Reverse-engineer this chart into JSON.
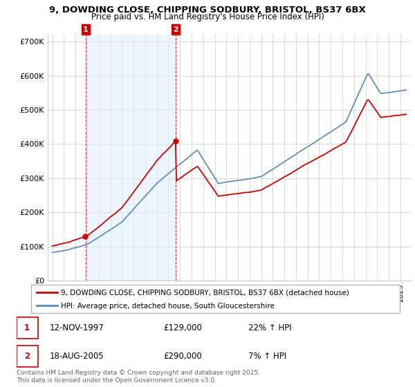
{
  "title": "9, DOWDING CLOSE, CHIPPING SODBURY, BRISTOL, BS37 6BX",
  "subtitle": "Price paid vs. HM Land Registry's House Price Index (HPI)",
  "legend_line1": "9, DOWDING CLOSE, CHIPPING SODBURY, BRISTOL, BS37 6BX (detached house)",
  "legend_line2": "HPI: Average price, detached house, South Gloucestershire",
  "footer": "Contains HM Land Registry data © Crown copyright and database right 2025.\nThis data is licensed under the Open Government Licence v3.0.",
  "sale1_date": "12-NOV-1997",
  "sale1_price": 129000,
  "sale1_hpi": "22% ↑ HPI",
  "sale2_date": "18-AUG-2005",
  "sale2_price": 290000,
  "sale2_hpi": "7% ↑ HPI",
  "ylim": [
    0,
    720000
  ],
  "yticks": [
    0,
    100000,
    200000,
    300000,
    400000,
    500000,
    600000,
    700000
  ],
  "ytick_labels": [
    "£0",
    "£100K",
    "£200K",
    "£300K",
    "£400K",
    "£500K",
    "£600K",
    "£700K"
  ],
  "red_color": "#cc0000",
  "blue_color": "#5588bb",
  "fill_color": "#ddeeff",
  "background_color": "#ffffff",
  "grid_color": "#cccccc",
  "annotation_box_color": "#cc0000",
  "sale1_x": 1997.87,
  "sale2_x": 2005.63
}
